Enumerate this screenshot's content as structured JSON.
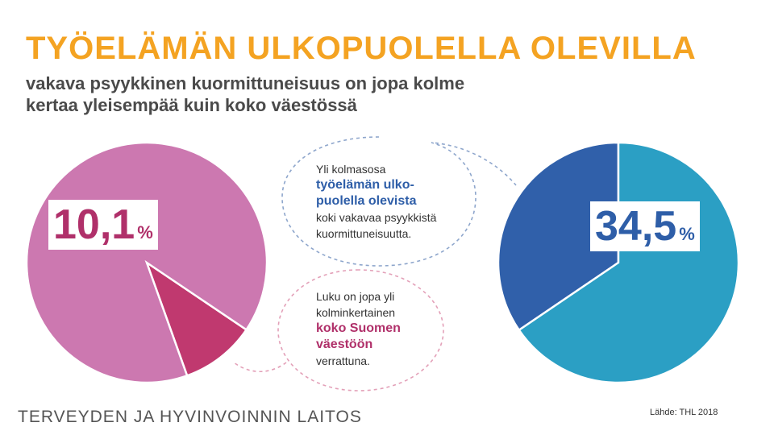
{
  "header": {
    "title": "TYÖELÄMÄN ULKOPUOLELLA OLEVILLA",
    "subtitle_line1": "vakava psyykkinen kuormittuneisuus on jopa kolme",
    "subtitle_line2": "kertaa yleisempää kuin koko väestössä"
  },
  "chart_data": [
    {
      "type": "pie",
      "title": "",
      "slices": [
        {
          "label": "",
          "value": 10.1,
          "color": "#c0396f"
        },
        {
          "label": "",
          "value": 89.9,
          "color": "#cc78b0"
        }
      ],
      "value_label": {
        "number": "10,1",
        "unit": "%"
      }
    },
    {
      "type": "pie",
      "title": "",
      "slices": [
        {
          "label": "",
          "value": 34.5,
          "color": "#3060aa"
        },
        {
          "label": "",
          "value": 65.5,
          "color": "#2b9fc4"
        }
      ],
      "value_label": {
        "number": "34,5",
        "unit": "%"
      }
    }
  ],
  "callouts": {
    "top": {
      "line1": "Yli kolmasosa",
      "em1": "työelämän ulko-",
      "em2": "puolella olevista",
      "line2": "koki  vakavaa psyykkistä",
      "line3": "kuormittuneisuutta."
    },
    "bottom": {
      "line1": "Luku on jopa yli",
      "line2": "kolminkertainen",
      "em1": "koko Suomen",
      "em2": "väestöön",
      "line3": "verrattuna."
    }
  },
  "footer": {
    "organization": "TERVEYDEN JA HYVINVOINNIN LAITOS",
    "source": "Lähde: THL 2018"
  },
  "colors": {
    "title": "#f4a322",
    "callout_top_border": "#8ea6cc",
    "callout_bottom_border": "#e3a0b8"
  }
}
